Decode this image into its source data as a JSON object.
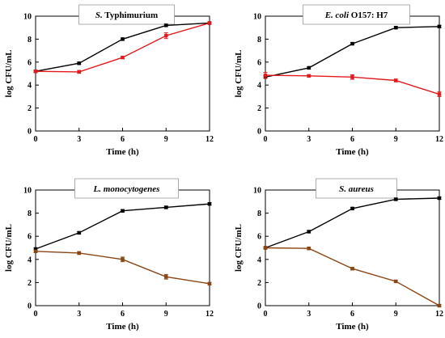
{
  "chart_data": [
    {
      "type": "line",
      "title": "S. Typhimurium",
      "title_italic": "S.",
      "title_rest": " Typhimurium",
      "xlabel": "Time (h)",
      "ylabel": "log CFU/mL",
      "x": [
        0,
        3,
        6,
        9,
        12
      ],
      "x_ticks": [
        "0",
        "3",
        "6",
        "9",
        "12"
      ],
      "y_ticks": [
        "0",
        "2",
        "4",
        "6",
        "8",
        "10"
      ],
      "xlim": [
        0,
        12
      ],
      "ylim": [
        0,
        10
      ],
      "grid": false,
      "series": [
        {
          "color": "#000000",
          "values": [
            5.2,
            5.9,
            8.0,
            9.2,
            9.4
          ],
          "errors": [
            0.1,
            0.1,
            0.1,
            0.1,
            0.1
          ]
        },
        {
          "color": "#e31a1c",
          "values": [
            5.2,
            5.15,
            6.4,
            8.3,
            9.4
          ],
          "errors": [
            0.1,
            0.12,
            0.1,
            0.25,
            0.1
          ]
        }
      ]
    },
    {
      "type": "line",
      "title": "E. coli O157: H7",
      "title_italic": "E. coli",
      "title_rest": " O157: H7",
      "xlabel": "Time (h)",
      "ylabel": "log CFU/mL",
      "x": [
        0,
        3,
        6,
        9,
        12
      ],
      "x_ticks": [
        "0",
        "3",
        "6",
        "9",
        "12"
      ],
      "y_ticks": [
        "0",
        "2",
        "4",
        "6",
        "8",
        "10"
      ],
      "xlim": [
        0,
        12
      ],
      "ylim": [
        0,
        10
      ],
      "grid": false,
      "series": [
        {
          "color": "#000000",
          "values": [
            4.7,
            5.5,
            7.6,
            9.0,
            9.1
          ],
          "errors": [
            0.1,
            0.1,
            0.1,
            0.1,
            0.1
          ]
        },
        {
          "color": "#e31a1c",
          "values": [
            4.85,
            4.8,
            4.7,
            4.4,
            3.2
          ],
          "errors": [
            0.25,
            0.1,
            0.2,
            0.12,
            0.2
          ]
        }
      ]
    },
    {
      "type": "line",
      "title": "L. monocytogenes",
      "title_italic": "L. monocytogenes",
      "title_rest": "",
      "xlabel": "Time (h)",
      "ylabel": "log CFU/mL",
      "x": [
        0,
        3,
        6,
        9,
        12
      ],
      "x_ticks": [
        "0",
        "3",
        "6",
        "9",
        "12"
      ],
      "y_ticks": [
        "0",
        "2",
        "4",
        "6",
        "8",
        "10"
      ],
      "xlim": [
        0,
        12
      ],
      "ylim": [
        0,
        10
      ],
      "grid": false,
      "series": [
        {
          "color": "#000000",
          "values": [
            4.9,
            6.3,
            8.2,
            8.5,
            8.8
          ],
          "errors": [
            0.1,
            0.1,
            0.1,
            0.1,
            0.1
          ]
        },
        {
          "color": "#8b4513",
          "values": [
            4.7,
            4.55,
            4.0,
            2.5,
            1.9
          ],
          "errors": [
            0.1,
            0.12,
            0.2,
            0.2,
            0.1
          ]
        }
      ]
    },
    {
      "type": "line",
      "title": "S. aureus",
      "title_italic": "S. aureus",
      "title_rest": "",
      "xlabel": "Time (h)",
      "ylabel": "log CFU/mL",
      "x": [
        0,
        3,
        6,
        9,
        12
      ],
      "x_ticks": [
        "0",
        "3",
        "6",
        "9",
        "12"
      ],
      "y_ticks": [
        "0",
        "2",
        "4",
        "6",
        "8",
        "10"
      ],
      "xlim": [
        0,
        12
      ],
      "ylim": [
        0,
        10
      ],
      "grid": false,
      "series": [
        {
          "color": "#000000",
          "values": [
            5.0,
            6.4,
            8.4,
            9.2,
            9.3
          ],
          "errors": [
            0.1,
            0.1,
            0.1,
            0.1,
            0.1
          ]
        },
        {
          "color": "#8b4513",
          "values": [
            5.0,
            4.95,
            3.2,
            2.1,
            0.0
          ],
          "errors": [
            0.1,
            0.1,
            0.1,
            0.1,
            0.1
          ]
        }
      ]
    }
  ]
}
